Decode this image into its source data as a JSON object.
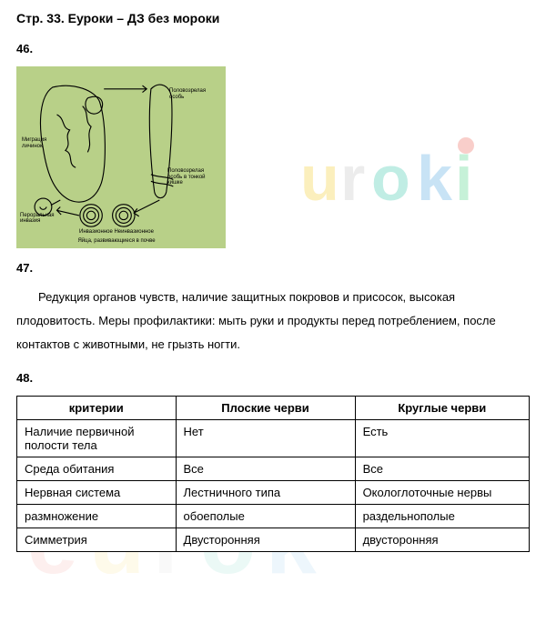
{
  "title": "Стр. 33. Еуроки – ДЗ без мороки",
  "q46": {
    "num": "46."
  },
  "diagram": {
    "bg_color": "#b8d088",
    "labels": {
      "right_top": "Половозрелая особь",
      "right_mid": "Половозрелая особь в тонкой кишке",
      "left_mid": "Миграция личинок",
      "left_bot": "Пероральная инвазия",
      "bottom": "Инвазионное  Неинвазионное",
      "bottom2": "Яйца, развивающиеся в почве"
    }
  },
  "q47": {
    "num": "47.",
    "text": "Редукция органов чувств, наличие защитных покровов и присосок, высокая плодовитость. Меры профилактики: мыть руки и продукты перед потреблением, после контактов с животными, не грызть ногти."
  },
  "q48": {
    "num": "48."
  },
  "table": {
    "headers": [
      "критерии",
      "Плоские черви",
      "Круглые черви"
    ],
    "rows": [
      [
        "Наличие первичной полости тела",
        "Нет",
        "Есть"
      ],
      [
        "Среда обитания",
        "Все",
        "Все"
      ],
      [
        "Нервная система",
        "Лестничного типа",
        "Окологлоточные нервы"
      ],
      [
        "размножение",
        "обоеполые",
        "раздельнополые"
      ],
      [
        "Симметрия",
        "Двусторонняя",
        "двусторонняя"
      ]
    ],
    "col_widths": [
      "31%",
      "35%",
      "34%"
    ]
  },
  "watermark_colors": {
    "e": "#e84c3d",
    "u": "#f1c40f",
    "r": "#aaaaaa",
    "o": "#1abc9c",
    "k": "#3498db",
    "i": "#2ecc71"
  }
}
